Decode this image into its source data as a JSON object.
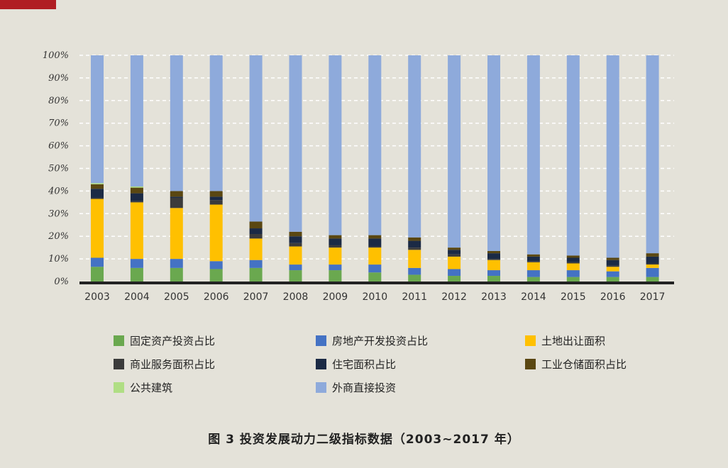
{
  "colors": {
    "background": "#e4e2d9",
    "corner_tab": "#b01e23",
    "axis": "#222222",
    "gridline": "#ffffff"
  },
  "caption": "图 3  投资发展动力二级指标数据（2003~2017 年）",
  "chart_data": {
    "type": "bar",
    "stacked": true,
    "normalized": true,
    "title": "图 3  投资发展动力二级指标数据（2003~2017 年）",
    "xlabel": "",
    "ylabel": "",
    "ylim": [
      0,
      100
    ],
    "yticks": [
      "0%",
      "10%",
      "20%",
      "30%",
      "40%",
      "50%",
      "60%",
      "70%",
      "80%",
      "90%",
      "100%"
    ],
    "grid": true,
    "legend_position": "bottom",
    "categories": [
      "2003",
      "2004",
      "2005",
      "2006",
      "2007",
      "2008",
      "2009",
      "2010",
      "2011",
      "2012",
      "2013",
      "2014",
      "2015",
      "2016",
      "2017"
    ],
    "series": [
      {
        "name": "固定资产投资占比",
        "color": "#6aa84f",
        "values": [
          6.5,
          6.0,
          6.0,
          5.5,
          6.0,
          5.0,
          5.0,
          4.0,
          3.0,
          2.5,
          2.5,
          2.0,
          2.0,
          2.0,
          2.0
        ]
      },
      {
        "name": "房地产开发投资占比",
        "color": "#4472c4",
        "values": [
          4.0,
          4.0,
          4.0,
          3.5,
          3.5,
          2.5,
          2.5,
          3.5,
          3.0,
          3.0,
          2.5,
          3.0,
          3.0,
          2.5,
          4.0
        ]
      },
      {
        "name": "土地出让面积",
        "color": "#ffc000",
        "values": [
          26.0,
          25.0,
          22.5,
          25.0,
          9.5,
          8.0,
          7.5,
          7.5,
          8.0,
          5.5,
          4.5,
          3.5,
          3.0,
          2.0,
          1.5
        ]
      },
      {
        "name": "商业服务面积占比",
        "color": "#3b3b3b",
        "values": [
          0.5,
          0.5,
          4.5,
          2.0,
          2.0,
          1.5,
          1.0,
          0.5,
          1.0,
          1.0,
          0.5,
          0.5,
          0.5,
          0.5,
          0.5
        ]
      },
      {
        "name": "住宅面积占比",
        "color": "#1b2a45",
        "values": [
          4.0,
          3.5,
          0.5,
          1.5,
          2.5,
          3.0,
          3.0,
          3.5,
          3.0,
          2.0,
          2.5,
          2.0,
          2.0,
          2.5,
          3.0
        ]
      },
      {
        "name": "工业仓储面积占比",
        "color": "#5a4712",
        "values": [
          2.0,
          2.5,
          2.5,
          2.5,
          3.0,
          2.0,
          1.5,
          1.5,
          1.5,
          1.0,
          1.0,
          1.0,
          1.0,
          1.0,
          1.5
        ]
      },
      {
        "name": "公共建筑",
        "color": "#b0de84",
        "values": [
          0.5,
          0.5,
          0.0,
          0.0,
          0.0,
          0.0,
          0.0,
          0.0,
          0.0,
          0.0,
          0.0,
          0.0,
          0.0,
          0.0,
          0.0
        ]
      },
      {
        "name": "外商直接投资",
        "color": "#8eaadb",
        "values": [
          56.5,
          58.0,
          60.0,
          60.0,
          73.5,
          78.0,
          79.5,
          79.5,
          80.5,
          85.0,
          86.5,
          88.0,
          88.5,
          89.5,
          87.5
        ]
      }
    ]
  }
}
